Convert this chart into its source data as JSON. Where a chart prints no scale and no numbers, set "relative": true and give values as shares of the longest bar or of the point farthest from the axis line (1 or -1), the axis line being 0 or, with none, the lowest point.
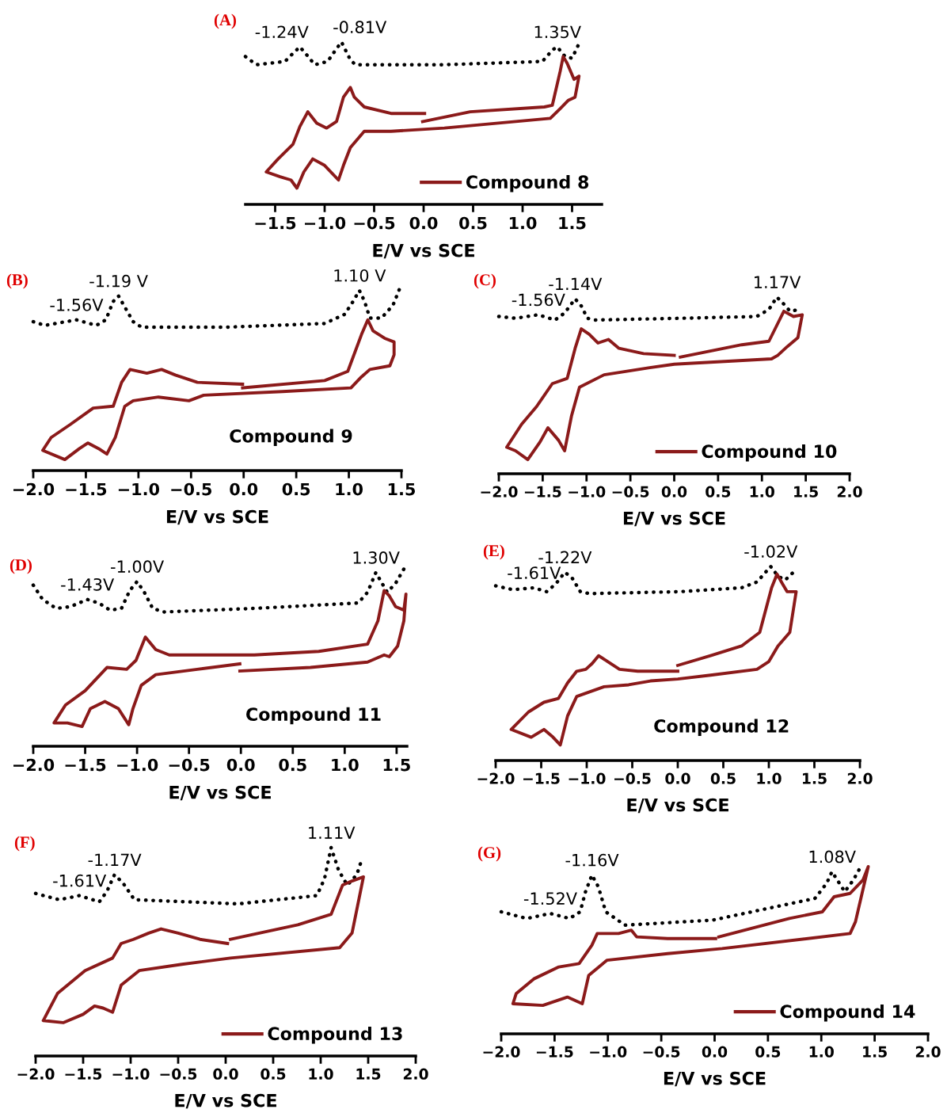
{
  "chart_data": [
    {
      "type": "line",
      "title": "(A)",
      "relative": true,
      "xlabel": "E/V vs SCE",
      "xlim": [
        -1.8,
        1.8
      ],
      "xticks": [
        {
          "value": -1.5,
          "label": "−1.5"
        },
        {
          "value": -1.0,
          "label": "−1.0"
        },
        {
          "value": -0.5,
          "label": "−0.5"
        },
        {
          "value": 0.0,
          "label": "0.0"
        },
        {
          "value": 0.5,
          "label": "0.5"
        },
        {
          "value": 1.0,
          "label": "1.0"
        },
        {
          "value": 1.5,
          "label": "1.5"
        }
      ],
      "tick_labels": "x",
      "grid": false,
      "legend": "bottom right",
      "marker": "none",
      "series": [
        {
          "color": "#000000",
          "line_style": "dotted",
          "x": [
            -1.8,
            -1.69,
            -1.4,
            -1.32,
            -1.25,
            -1.18,
            -1.1,
            -0.97,
            -0.89,
            -0.83,
            -0.74,
            -0.69,
            0.21,
            1.2,
            1.3,
            1.35,
            1.43,
            1.5,
            1.57
          ],
          "values": [
            0.91,
            0.86,
            0.88,
            0.93,
            0.97,
            0.92,
            0.86,
            0.88,
            0.95,
            1.0,
            0.89,
            0.86,
            0.86,
            0.88,
            0.95,
            0.97,
            0.91,
            0.9,
            0.99
          ]
        },
        {
          "name": "Compound 8",
          "color": "#8b1a1a",
          "line_style": "solid",
          "x": [
            0.01,
            -0.33,
            -0.6,
            -0.7,
            -0.74,
            -0.81,
            -0.88,
            -0.98,
            -1.08,
            -1.17,
            -1.25,
            -1.32,
            -1.47,
            -1.59,
            -1.45,
            -1.34,
            -1.28,
            -1.21,
            -1.12,
            -1.0,
            -0.86,
            -0.81,
            -0.74,
            -0.6,
            -0.33,
            0.21,
            1.28,
            1.38,
            1.46,
            1.53,
            1.57,
            1.52,
            1.45,
            1.41,
            1.38,
            1.3,
            1.22,
            0.47,
            -0.01
          ],
          "values": [
            0.56,
            0.56,
            0.6,
            0.66,
            0.72,
            0.66,
            0.51,
            0.47,
            0.5,
            0.57,
            0.48,
            0.37,
            0.28,
            0.2,
            0.17,
            0.15,
            0.1,
            0.2,
            0.28,
            0.24,
            0.15,
            0.24,
            0.35,
            0.45,
            0.45,
            0.47,
            0.53,
            0.59,
            0.64,
            0.66,
            0.79,
            0.77,
            0.87,
            0.91,
            0.82,
            0.61,
            0.6,
            0.57,
            0.51
          ]
        }
      ],
      "annotations": [
        {
          "text": "-1.24V",
          "x": -1.25,
          "y": 0.97
        },
        {
          "text": "-0.81V",
          "x": -0.83,
          "y": 1.0
        },
        {
          "text": "1.35V",
          "x": 1.35,
          "y": 0.97
        }
      ]
    },
    {
      "type": "line",
      "title": "(B)",
      "relative": true,
      "xlabel": "E/V vs SCE",
      "xlim": [
        -2.0,
        1.5
      ],
      "xticks": [
        {
          "value": -2.0,
          "label": "−2.0"
        },
        {
          "value": -1.5,
          "label": "−1.5"
        },
        {
          "value": -1.0,
          "label": "−1.0"
        },
        {
          "value": -0.5,
          "label": "−0.5"
        },
        {
          "value": 0.0,
          "label": "0.0"
        },
        {
          "value": 0.5,
          "label": "0.5"
        },
        {
          "value": 1.0,
          "label": "1.0"
        },
        {
          "value": 1.5,
          "label": "1.5"
        }
      ],
      "tick_labels": "x",
      "grid": false,
      "marker": "none",
      "series": [
        {
          "color": "#000000",
          "line_style": "dotted",
          "x": [
            -2.0,
            -1.89,
            -1.59,
            -1.4,
            -1.31,
            -1.24,
            -1.19,
            -1.13,
            -1.05,
            -0.97,
            -0.17,
            0.77,
            0.96,
            1.04,
            1.1,
            1.15,
            1.2,
            1.31,
            1.42,
            1.49
          ],
          "values": [
            0.81,
            0.79,
            0.82,
            0.79,
            0.82,
            0.92,
            0.95,
            0.89,
            0.81,
            0.78,
            0.78,
            0.8,
            0.85,
            0.92,
            0.98,
            0.92,
            0.83,
            0.83,
            0.9,
            1.0
          ]
        },
        {
          "color": "#8b1a1a",
          "line_style": "solid",
          "x": [
            -0.01,
            -0.44,
            -0.65,
            -0.78,
            -0.92,
            -1.08,
            -1.16,
            -1.24,
            -1.43,
            -1.65,
            -1.83,
            -1.91,
            -1.7,
            -1.56,
            -1.48,
            -1.38,
            -1.3,
            -1.22,
            -1.13,
            -1.05,
            -0.81,
            -0.52,
            -0.38,
            0.37,
            1.02,
            1.12,
            1.2,
            1.39,
            1.43,
            1.43,
            1.34,
            1.23,
            1.18,
            1.12,
            0.99,
            0.77,
            -0.01
          ],
          "values": [
            0.47,
            0.48,
            0.52,
            0.55,
            0.53,
            0.55,
            0.48,
            0.35,
            0.34,
            0.25,
            0.18,
            0.11,
            0.06,
            0.12,
            0.15,
            0.12,
            0.09,
            0.18,
            0.35,
            0.38,
            0.4,
            0.38,
            0.41,
            0.43,
            0.45,
            0.51,
            0.55,
            0.57,
            0.63,
            0.7,
            0.72,
            0.76,
            0.82,
            0.74,
            0.54,
            0.49,
            0.45
          ]
        }
      ],
      "annotations": [
        {
          "text": "-1.56V",
          "x": -1.59,
          "y": 0.82
        },
        {
          "text": "-1.19 V",
          "x": -1.19,
          "y": 0.95
        },
        {
          "text": "1.10 V",
          "x": 1.1,
          "y": 0.98
        },
        "Compound 9"
      ]
    },
    {
      "type": "line",
      "title": "(C)",
      "relative": true,
      "xlabel": "E/V vs SCE",
      "xlim": [
        -2.0,
        2.0
      ],
      "xticks": [
        {
          "value": -2.0,
          "label": "−2.0"
        },
        {
          "value": -1.5,
          "label": "−1.5"
        },
        {
          "value": -1.0,
          "label": "−1.0"
        },
        {
          "value": -0.5,
          "label": "−0.5"
        },
        {
          "value": 0.0,
          "label": "0.0"
        },
        {
          "value": 0.5,
          "label": "0.5"
        },
        {
          "value": 1.0,
          "label": "1.0"
        },
        {
          "value": 1.5,
          "label": "1.5"
        },
        {
          "value": 2.0,
          "label": "2.0"
        }
      ],
      "tick_labels": "x",
      "grid": false,
      "legend": "bottom right",
      "marker": "none",
      "series": [
        {
          "color": "#000000",
          "line_style": "dotted",
          "x": [
            -2.0,
            -1.81,
            -1.55,
            -1.36,
            -1.25,
            -1.13,
            -1.06,
            -0.99,
            -0.9,
            0.07,
            0.94,
            1.08,
            1.17,
            1.25,
            1.32,
            1.43
          ],
          "values": [
            0.89,
            0.88,
            0.9,
            0.87,
            0.91,
            0.99,
            0.95,
            0.88,
            0.87,
            0.88,
            0.89,
            0.93,
            1.0,
            0.96,
            0.92,
            0.93
          ]
        },
        {
          "name": "Compound 10",
          "color": "#8b1a1a",
          "line_style": "solid",
          "x": [
            0,
            -0.35,
            -0.63,
            -0.75,
            -0.87,
            -0.97,
            -1.06,
            -1.13,
            -1.22,
            -1.39,
            -1.57,
            -1.74,
            -1.91,
            -1.81,
            -1.67,
            -1.53,
            -1.44,
            -1.32,
            -1.25,
            -1.17,
            -1.08,
            -0.8,
            -0.28,
            0,
            1.11,
            1.18,
            1.29,
            1.41,
            1.46,
            1.36,
            1.25,
            1.2,
            1.08,
            0.77,
            0.07
          ],
          "values": [
            0.67,
            0.68,
            0.71,
            0.76,
            0.74,
            0.79,
            0.82,
            0.71,
            0.54,
            0.51,
            0.38,
            0.28,
            0.15,
            0.13,
            0.08,
            0.18,
            0.26,
            0.19,
            0.13,
            0.33,
            0.49,
            0.56,
            0.6,
            0.62,
            0.65,
            0.67,
            0.72,
            0.77,
            0.9,
            0.89,
            0.92,
            0.87,
            0.75,
            0.73,
            0.66
          ]
        }
      ],
      "annotations": [
        {
          "text": "-1.56V",
          "x": -1.55,
          "y": 0.9
        },
        {
          "text": "-1.14V",
          "x": -1.13,
          "y": 0.99
        },
        {
          "text": "1.17V",
          "x": 1.17,
          "y": 1.0
        }
      ]
    },
    {
      "type": "line",
      "title": "(D)",
      "relative": true,
      "xlabel": "E/V vs SCE",
      "xlim": [
        -2.0,
        1.6
      ],
      "xticks": [
        {
          "value": -2.0,
          "label": "−2.0"
        },
        {
          "value": -1.5,
          "label": "−1.5"
        },
        {
          "value": -1.0,
          "label": "−1.0"
        },
        {
          "value": -0.5,
          "label": "−0.5"
        },
        {
          "value": 0.0,
          "label": "0.0"
        },
        {
          "value": 0.5,
          "label": "0.5"
        },
        {
          "value": 1.0,
          "label": "1.0"
        },
        {
          "value": 1.5,
          "label": "1.5"
        }
      ],
      "tick_labels": "x",
      "grid": false,
      "marker": "none",
      "series": [
        {
          "color": "#000000",
          "line_style": "dotted",
          "x": [
            -2.0,
            -1.91,
            -1.78,
            -1.64,
            -1.48,
            -1.37,
            -1.26,
            -1.15,
            -1.07,
            -1.0,
            -0.93,
            -0.85,
            -0.74,
            0.13,
            1.13,
            1.22,
            1.3,
            1.35,
            1.41,
            1.49,
            1.58
          ],
          "values": [
            0.9,
            0.82,
            0.77,
            0.78,
            0.82,
            0.8,
            0.76,
            0.77,
            0.87,
            0.92,
            0.86,
            0.77,
            0.75,
            0.77,
            0.8,
            0.86,
            0.97,
            0.92,
            0.86,
            0.91,
            1.0
          ]
        },
        {
          "color": "#8b1a1a",
          "line_style": "solid",
          "x": [
            -0.01,
            -0.42,
            -0.82,
            -0.96,
            -1.04,
            -1.08,
            -1.18,
            -1.31,
            -1.45,
            -1.53,
            -1.67,
            -1.8,
            -1.69,
            -1.5,
            -1.29,
            -1.1,
            -1.01,
            -0.92,
            -0.82,
            -0.69,
            0.13,
            0.75,
            1.22,
            1.32,
            1.38,
            1.43,
            1.49,
            1.57,
            1.59,
            1.57,
            1.51,
            1.43,
            1.38,
            1.3,
            1.22,
            0.67,
            -0.01
          ],
          "values": [
            0.46,
            0.43,
            0.4,
            0.34,
            0.21,
            0.12,
            0.21,
            0.25,
            0.21,
            0.11,
            0.13,
            0.13,
            0.23,
            0.31,
            0.44,
            0.43,
            0.48,
            0.61,
            0.54,
            0.51,
            0.51,
            0.53,
            0.57,
            0.7,
            0.87,
            0.84,
            0.78,
            0.76,
            0.85,
            0.7,
            0.56,
            0.5,
            0.51,
            0.49,
            0.47,
            0.44,
            0.42
          ]
        }
      ],
      "annotations": [
        {
          "text": "-1.43V",
          "x": -1.48,
          "y": 0.82
        },
        {
          "text": "-1.00V",
          "x": -1.0,
          "y": 0.92
        },
        {
          "text": "1.30V",
          "x": 1.3,
          "y": 0.97
        },
        "Compound 11"
      ]
    },
    {
      "type": "line",
      "title": "(E)",
      "relative": true,
      "xlabel": "E/V vs SCE",
      "xlim": [
        -2.0,
        2.0
      ],
      "xticks": [
        {
          "value": -2.0,
          "label": "−2.0"
        },
        {
          "value": -1.5,
          "label": "−1.5"
        },
        {
          "value": -1.0,
          "label": "−1.0"
        },
        {
          "value": -0.5,
          "label": "−0.5"
        },
        {
          "value": 0.0,
          "label": "0.0"
        },
        {
          "value": 0.5,
          "label": "0.5"
        },
        {
          "value": 1.0,
          "label": "1.0"
        },
        {
          "value": 1.5,
          "label": "1.5"
        },
        {
          "value": 2.0,
          "label": "2.0"
        }
      ],
      "tick_labels": "x",
      "grid": false,
      "marker": "none",
      "series": [
        {
          "color": "#000000",
          "line_style": "dotted",
          "x": [
            -2.0,
            -1.81,
            -1.58,
            -1.44,
            -1.34,
            -1.24,
            -1.16,
            -1.07,
            -0.97,
            0.03,
            0.7,
            0.87,
            1.02,
            1.1,
            1.18,
            1.27
          ],
          "values": [
            0.9,
            0.88,
            0.89,
            0.87,
            0.91,
            0.97,
            0.94,
            0.87,
            0.86,
            0.87,
            0.89,
            0.92,
            1.0,
            0.95,
            0.93,
            0.97
          ]
        },
        {
          "color": "#8b1a1a",
          "line_style": "solid",
          "x": [
            0,
            -0.44,
            -0.64,
            -0.77,
            -0.87,
            -0.94,
            -1.01,
            -1.11,
            -1.21,
            -1.31,
            -1.47,
            -1.64,
            -1.83,
            -1.61,
            -1.47,
            -1.37,
            -1.29,
            -1.21,
            -1.11,
            -0.81,
            -0.54,
            -0.3,
            0,
            0.36,
            0.87,
            1.0,
            1.1,
            1.23,
            1.3,
            1.2,
            1.15,
            1.09,
            1.03,
            0.9,
            0.7,
            0.36,
            0
          ],
          "values": [
            0.46,
            0.46,
            0.47,
            0.51,
            0.54,
            0.5,
            0.47,
            0.46,
            0.4,
            0.32,
            0.3,
            0.25,
            0.16,
            0.12,
            0.16,
            0.12,
            0.08,
            0.23,
            0.33,
            0.38,
            0.39,
            0.41,
            0.42,
            0.44,
            0.47,
            0.51,
            0.59,
            0.66,
            0.87,
            0.87,
            0.91,
            0.96,
            0.89,
            0.66,
            0.59,
            0.54,
            0.49
          ]
        }
      ],
      "annotations": [
        {
          "text": "-1.61V",
          "x": -1.58,
          "y": 0.89
        },
        {
          "text": "-1.22V",
          "x": -1.24,
          "y": 0.97
        },
        {
          "text": "-1.02V",
          "x": 1.02,
          "y": 1.0
        },
        "Compound 12"
      ]
    },
    {
      "type": "line",
      "title": "(F)",
      "relative": true,
      "xlabel": "E/V vs SCE",
      "xlim": [
        -2.0,
        2.0
      ],
      "xticks": [
        {
          "value": -2.0,
          "label": "−2.0"
        },
        {
          "value": -1.5,
          "label": "−1.5"
        },
        {
          "value": -1.0,
          "label": "−1.0"
        },
        {
          "value": -0.5,
          "label": "−0.5"
        },
        {
          "value": 0.0,
          "label": "0.0"
        },
        {
          "value": 0.5,
          "label": "0.5"
        },
        {
          "value": 1.0,
          "label": "1.0"
        },
        {
          "value": 1.5,
          "label": "1.5"
        },
        {
          "value": 2.0,
          "label": "2.0"
        }
      ],
      "tick_labels": "x",
      "grid": false,
      "legend": "bottom right",
      "marker": "none",
      "series": [
        {
          "color": "#000000",
          "line_style": "dotted",
          "x": [
            -2.0,
            -1.75,
            -1.54,
            -1.33,
            -1.25,
            -1.17,
            -1.08,
            -0.96,
            0.13,
            0.96,
            1.04,
            1.11,
            1.19,
            1.28,
            1.38,
            1.43
          ],
          "values": [
            0.78,
            0.75,
            0.77,
            0.74,
            0.79,
            0.87,
            0.83,
            0.75,
            0.73,
            0.77,
            0.85,
            1.0,
            0.89,
            0.82,
            0.87,
            0.94
          ]
        },
        {
          "name": "Compound 13",
          "color": "#8b1a1a",
          "line_style": "solid",
          "x": [
            0.02,
            -0.27,
            -0.5,
            -0.68,
            -0.81,
            -0.97,
            -1.1,
            -1.19,
            -1.48,
            -1.77,
            -1.92,
            -1.71,
            -1.5,
            -1.38,
            -1.29,
            -1.19,
            -1.1,
            -0.91,
            -0.46,
            0.05,
            1.2,
            1.33,
            1.45,
            1.33,
            1.23,
            1.11,
            0.76,
            0.05
          ],
          "values": [
            0.54,
            0.56,
            0.59,
            0.61,
            0.59,
            0.56,
            0.54,
            0.47,
            0.41,
            0.3,
            0.17,
            0.16,
            0.2,
            0.24,
            0.23,
            0.21,
            0.34,
            0.41,
            0.44,
            0.47,
            0.52,
            0.59,
            0.86,
            0.84,
            0.82,
            0.68,
            0.63,
            0.56
          ]
        }
      ],
      "annotations": [
        {
          "text": "-1.61V",
          "x": -1.54,
          "y": 0.77
        },
        {
          "text": "-1.17V",
          "x": -1.17,
          "y": 0.87
        },
        {
          "text": "1.11V",
          "x": 1.11,
          "y": 1.0
        }
      ]
    },
    {
      "type": "line",
      "title": "(G)",
      "relative": true,
      "xlabel": "E/V vs SCE",
      "xlim": [
        -2.0,
        2.0
      ],
      "xticks": [
        {
          "value": -2.0,
          "label": "−2.0"
        },
        {
          "value": -1.5,
          "label": "−1.5"
        },
        {
          "value": -1.0,
          "label": "−1.0"
        },
        {
          "value": -0.5,
          "label": "−0.5"
        },
        {
          "value": 0.0,
          "label": "0.0"
        },
        {
          "value": 0.5,
          "label": "0.5"
        },
        {
          "value": 1.0,
          "label": "1.0"
        },
        {
          "value": 1.5,
          "label": "1.5"
        },
        {
          "value": 2.0,
          "label": "2.0"
        }
      ],
      "tick_labels": "x",
      "grid": false,
      "legend": "bottom right",
      "marker": "none",
      "series": [
        {
          "color": "#000000",
          "line_style": "dotted",
          "x": [
            -2.0,
            -1.76,
            -1.54,
            -1.36,
            -1.26,
            -1.21,
            -1.15,
            -1.09,
            -1.02,
            -0.84,
            -0.02,
            0.94,
            1.05,
            1.1,
            1.16,
            1.22,
            1.3,
            1.37
          ],
          "values": [
            0.73,
            0.69,
            0.72,
            0.69,
            0.73,
            0.85,
            0.95,
            0.88,
            0.73,
            0.65,
            0.68,
            0.81,
            0.9,
            0.97,
            0.91,
            0.85,
            0.92,
            1.0
          ]
        },
        {
          "name": "Compound 14",
          "color": "#8b1a1a",
          "line_style": "solid",
          "x": [
            0.01,
            -0.44,
            -0.73,
            -0.78,
            -0.9,
            -1.1,
            -1.15,
            -1.27,
            -1.46,
            -1.69,
            -1.86,
            -1.89,
            -1.61,
            -1.38,
            -1.24,
            -1.18,
            -1.01,
            -0.44,
            0.07,
            1.27,
            1.32,
            1.44,
            1.39,
            1.27,
            1.12,
            1.01,
            0.7,
            0.04
          ],
          "values": [
            0.57,
            0.57,
            0.58,
            0.62,
            0.6,
            0.6,
            0.53,
            0.42,
            0.4,
            0.33,
            0.24,
            0.18,
            0.17,
            0.22,
            0.18,
            0.35,
            0.44,
            0.48,
            0.51,
            0.6,
            0.67,
            1.0,
            0.92,
            0.84,
            0.82,
            0.73,
            0.69,
            0.58
          ]
        }
      ],
      "annotations": [
        {
          "text": "-1.52V",
          "x": -1.54,
          "y": 0.72
        },
        {
          "text": "-1.16V",
          "x": -1.15,
          "y": 0.95
        },
        {
          "text": "1.08V",
          "x": 1.1,
          "y": 0.97
        }
      ]
    }
  ]
}
